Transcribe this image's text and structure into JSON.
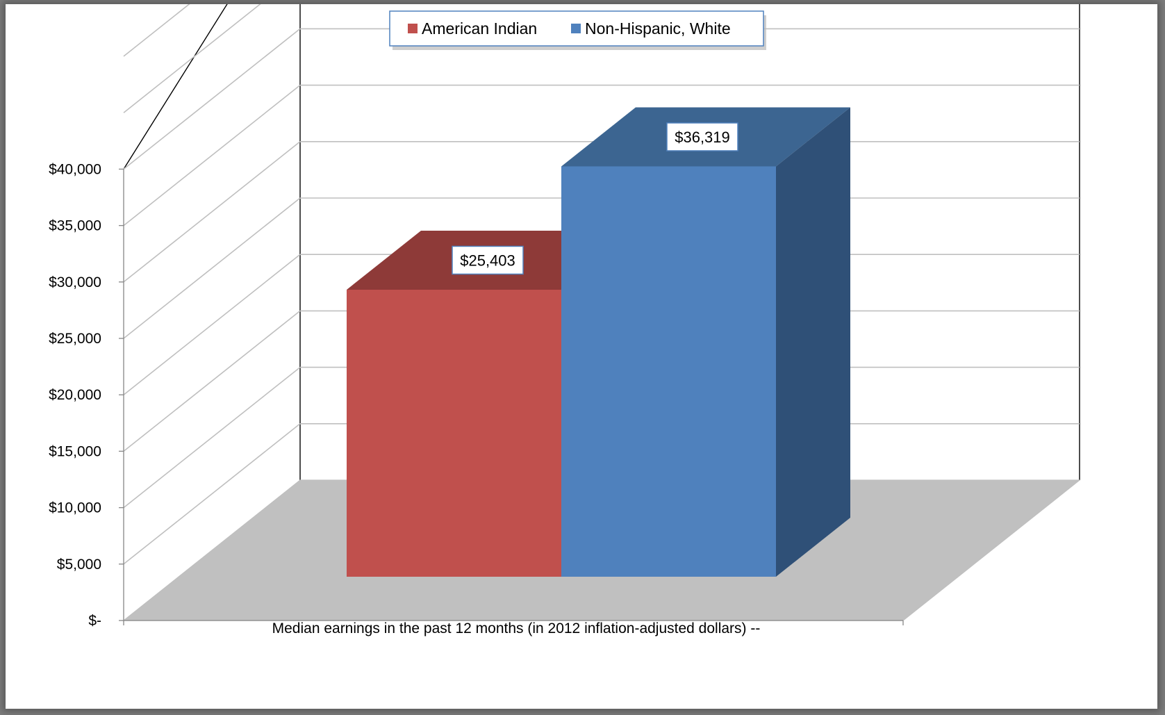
{
  "chart_data": {
    "type": "bar",
    "style": "3d-clustered-column",
    "categories": [
      "Median earnings in the past 12 months (in 2012 inflation-adjusted dollars) --"
    ],
    "series": [
      {
        "name": "American Indian",
        "values": [
          25403
        ],
        "color": "#C0504D",
        "top_color": "#8E3A38"
      },
      {
        "name": "Non-Hispanic, White",
        "values": [
          36319
        ],
        "color": "#4F81BD",
        "top_color": "#3C6591",
        "side_color": "#2F5077"
      }
    ],
    "y_tick_labels": [
      "$-",
      "$5,000",
      "$10,000",
      "$15,000",
      "$20,000",
      "$25,000",
      "$30,000",
      "$35,000",
      "$40,000"
    ],
    "data_labels": [
      "$25,403",
      "$36,319"
    ],
    "ylim": [
      0,
      40000
    ],
    "grid": true,
    "legend_position": "top-center",
    "colors": {
      "floor": "#C0C0C0",
      "gridline": "#BFBFBF",
      "axis": "#868686"
    }
  }
}
